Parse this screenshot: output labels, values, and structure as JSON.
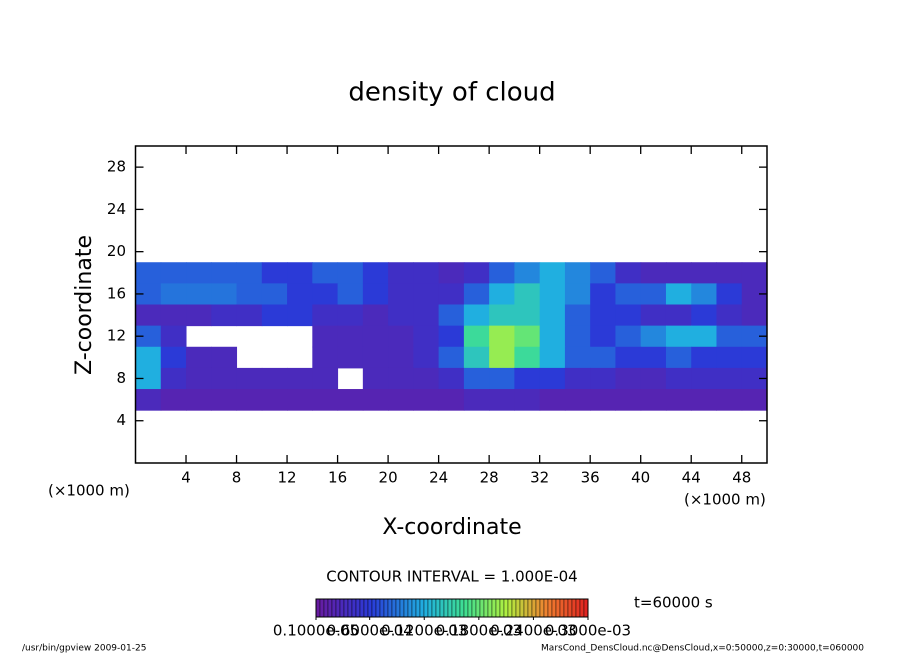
{
  "chart_data": {
    "type": "contour",
    "title": "density of cloud",
    "x_label": "X-coordinate",
    "y_label": "Z-coordinate",
    "x_unit_label": "(×1000 m)",
    "y_unit_label": "(×1000 m)",
    "x": [
      1,
      3,
      5,
      7,
      9,
      11,
      13,
      15,
      17,
      19,
      21,
      23,
      25,
      27,
      29,
      31,
      33,
      35,
      37,
      39,
      41,
      43,
      45,
      47,
      49
    ],
    "y": [
      18,
      16,
      14,
      12,
      10,
      8,
      6
    ],
    "z": [
      [
        8e-05,
        8e-05,
        8e-05,
        8e-05,
        8e-05,
        6e-05,
        6e-05,
        8e-05,
        8e-05,
        6e-05,
        4e-05,
        4e-05,
        3e-05,
        4e-05,
        8e-05,
        0.0001,
        0.00012,
        0.0001,
        8e-05,
        4e-05,
        3e-05,
        3e-05,
        3e-05,
        3e-05,
        3e-05
      ],
      [
        8e-05,
        9e-05,
        9e-05,
        9e-05,
        8e-05,
        8e-05,
        6e-05,
        6e-05,
        8e-05,
        6e-05,
        4e-05,
        4e-05,
        4e-05,
        8e-05,
        0.00012,
        0.00014,
        0.00012,
        0.0001,
        6e-05,
        8e-05,
        8e-05,
        0.00012,
        0.0001,
        6e-05,
        3e-05
      ],
      [
        3e-05,
        3e-05,
        3e-05,
        4e-05,
        4e-05,
        6e-05,
        6e-05,
        4e-05,
        4e-05,
        3e-05,
        4e-05,
        4e-05,
        8e-05,
        0.00012,
        0.00014,
        0.00014,
        0.00012,
        8e-05,
        6e-05,
        6e-05,
        4e-05,
        4e-05,
        6e-05,
        4e-05,
        3e-05
      ],
      [
        8e-05,
        4e-05,
        null,
        null,
        null,
        null,
        null,
        3e-05,
        3e-05,
        3e-05,
        3e-05,
        4e-05,
        6e-05,
        0.00016,
        0.0002,
        0.00018,
        0.00012,
        8e-05,
        6e-05,
        8e-05,
        0.0001,
        0.00012,
        0.00012,
        8e-05,
        8e-05
      ],
      [
        0.00012,
        6e-05,
        3e-05,
        3e-05,
        null,
        null,
        null,
        3e-05,
        3e-05,
        3e-05,
        3e-05,
        4e-05,
        8e-05,
        0.00014,
        0.0002,
        0.00016,
        0.00012,
        8e-05,
        8e-05,
        6e-05,
        6e-05,
        8e-05,
        6e-05,
        6e-05,
        6e-05
      ],
      [
        0.00012,
        4e-05,
        3e-05,
        3e-05,
        3e-05,
        3e-05,
        3e-05,
        3e-05,
        null,
        3e-05,
        3e-05,
        3e-05,
        4e-05,
        8e-05,
        8e-05,
        6e-05,
        6e-05,
        4e-05,
        4e-05,
        3e-05,
        3e-05,
        4e-05,
        4e-05,
        4e-05,
        4e-05
      ],
      [
        3e-05,
        2e-05,
        2e-05,
        2e-05,
        2e-05,
        2e-05,
        2e-05,
        2e-05,
        2e-05,
        2e-05,
        2e-05,
        2e-05,
        2e-05,
        3e-05,
        3e-05,
        3e-05,
        2e-05,
        2e-05,
        2e-05,
        2e-05,
        2e-05,
        2e-05,
        2e-05,
        2e-05,
        2e-05
      ]
    ],
    "xlim": [
      0,
      50
    ],
    "ylim": [
      0,
      30
    ],
    "xticks": [
      4,
      8,
      12,
      16,
      20,
      24,
      28,
      32,
      36,
      40,
      44,
      48
    ],
    "yticks": [
      4,
      8,
      12,
      16,
      20,
      24,
      28
    ],
    "contour_interval_label": "CONTOUR INTERVAL = 1.000E-04",
    "time_label": "t=60000 s",
    "colorbar": {
      "lim": [
        1e-06,
        0.0003
      ],
      "ticks": [
        {
          "value": 1e-06,
          "label": "0.1000e-05"
        },
        {
          "value": 6e-05,
          "label": "0.6000e-04"
        },
        {
          "value": 0.00012,
          "label": "0.1200e-03"
        },
        {
          "value": 0.00018,
          "label": "0.1800e-03"
        },
        {
          "value": 0.00024,
          "label": "0.2400e-03"
        },
        {
          "value": 0.0003,
          "label": "0.3000e-03"
        }
      ]
    }
  },
  "footer": {
    "left": "/usr/bin/gpview  2009-01-25",
    "right": "MarsCond_DensCloud.nc@DensCloud,x=0:50000,z=0:30000,t=060000"
  }
}
